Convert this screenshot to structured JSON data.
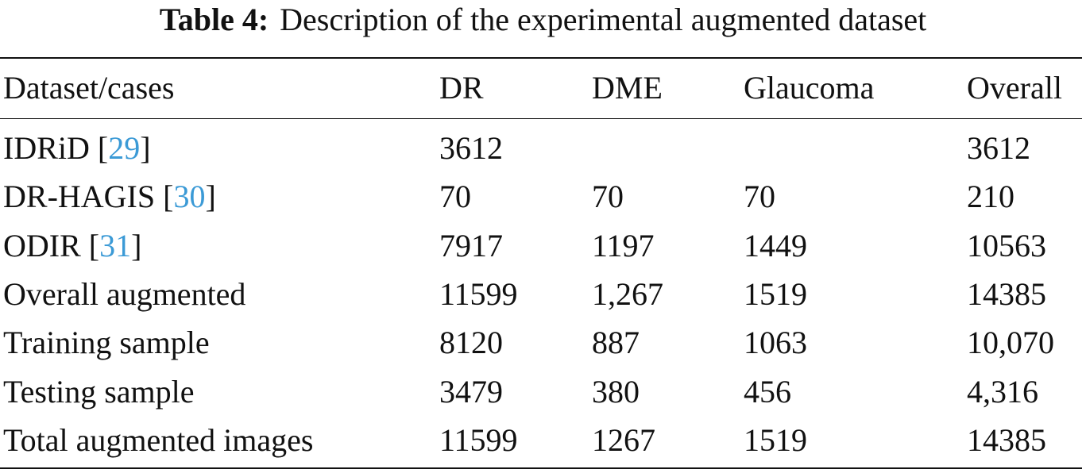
{
  "caption": {
    "label": "Table 4:",
    "text": "Description of the experimental augmented dataset"
  },
  "table": {
    "header": [
      "Dataset/cases",
      "DR",
      "DME",
      "Glaucoma",
      "Overall"
    ],
    "rows": [
      [
        [
          "IDRiD [",
          "29",
          "]"
        ],
        "3612",
        null,
        null,
        "3612"
      ],
      [
        [
          "DR-HAGIS [",
          "30",
          "]"
        ],
        "70",
        "70",
        "70",
        "210"
      ],
      [
        [
          "ODIR [",
          "31",
          "]"
        ],
        "7917",
        "1197",
        "1449",
        "10563"
      ],
      [
        [
          "Overall augmented"
        ],
        "11599",
        "1,267",
        "1519",
        "14385"
      ],
      [
        [
          "Training sample"
        ],
        "8120",
        "887",
        "1063",
        "10,070"
      ],
      [
        [
          "Testing sample"
        ],
        "3479",
        "380",
        "456",
        "4,316"
      ],
      [
        [
          "Total augmented images"
        ],
        "11599",
        "1267",
        "1519",
        "14385"
      ]
    ]
  }
}
